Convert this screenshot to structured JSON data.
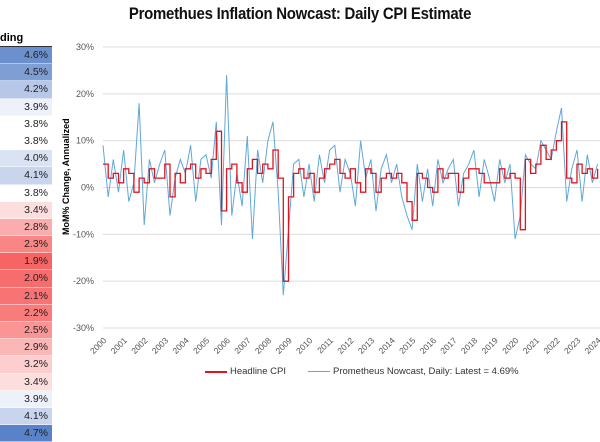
{
  "title": "Promethues Inflation Nowcast: Daily CPI Estimate",
  "table": {
    "header": "ding",
    "values": [
      "4.6%",
      "4.5%",
      "4.2%",
      "3.9%",
      "3.8%",
      "3.8%",
      "4.0%",
      "4.1%",
      "3.8%",
      "3.4%",
      "2.8%",
      "2.3%",
      "1.9%",
      "2.0%",
      "2.1%",
      "2.2%",
      "2.5%",
      "2.9%",
      "3.2%",
      "3.4%",
      "3.9%",
      "4.1%",
      "4.7%"
    ]
  },
  "chart_data": {
    "type": "line",
    "title": "Promethues Inflation Nowcast: Daily CPI Estimate",
    "xlabel": "",
    "ylabel": "MoM% Change, Annualized",
    "ylim": [
      -30,
      30
    ],
    "yticks": [
      "30%",
      "20%",
      "10%",
      "0%",
      "-10%",
      "-20%",
      "-30%"
    ],
    "yticks_values": [
      30,
      20,
      10,
      0,
      -10,
      -20,
      -30
    ],
    "xlim": [
      2000,
      2024.7
    ],
    "xticks": [
      "2000",
      "2001",
      "2002",
      "2003",
      "2004",
      "2005",
      "2006",
      "2007",
      "2008",
      "2009",
      "2010",
      "2011",
      "2012",
      "2013",
      "2014",
      "2015",
      "2016",
      "2017",
      "2018",
      "2019",
      "2020",
      "2021",
      "2022",
      "2023",
      "2024"
    ],
    "legend_position": "bottom",
    "grid": true,
    "x_start": 2000,
    "x_step": 0.25,
    "series": [
      {
        "name": "Headline CPI",
        "color": "#e0141e",
        "values": [
          5,
          2,
          3,
          1,
          4,
          3,
          -1,
          2,
          1,
          4,
          2,
          2,
          5,
          -2,
          3,
          1,
          4,
          5,
          2,
          4,
          3,
          6,
          12,
          -5,
          4,
          5,
          1,
          -1,
          4,
          6,
          3,
          5,
          4,
          8,
          2,
          -20,
          -2,
          3,
          4,
          2,
          3,
          -1,
          2,
          4,
          5,
          6,
          3,
          2,
          4,
          1,
          -1,
          4,
          3,
          -1,
          2,
          3,
          2,
          3,
          1,
          -3,
          -7,
          3,
          2,
          0,
          -1,
          4,
          2,
          3,
          3,
          -1,
          2,
          4,
          4,
          3,
          1,
          1,
          1,
          4,
          2,
          3,
          2,
          -9,
          6,
          3,
          5,
          9,
          6,
          8,
          10,
          14,
          2,
          1,
          5,
          3,
          4,
          2,
          4
        ]
      },
      {
        "name": "Prometheus Nowcast, Daily: Latest = 4.69%",
        "color": "#5fa8d8",
        "values": [
          9,
          -2,
          6,
          -1,
          8,
          -3,
          1,
          18,
          -8,
          6,
          1,
          5,
          8,
          -6,
          2,
          6,
          3,
          9,
          -3,
          6,
          7,
          2,
          14,
          -8,
          24,
          -6,
          3,
          -4,
          11,
          -11,
          8,
          1,
          10,
          14,
          -1,
          -23,
          -9,
          5,
          6,
          -2,
          5,
          -3,
          7,
          1,
          8,
          9,
          -1,
          6,
          3,
          -4,
          10,
          2,
          6,
          -5,
          4,
          7,
          1,
          5,
          -2,
          -6,
          -9,
          5,
          -3,
          4,
          -4,
          6,
          1,
          4,
          6,
          -4,
          3,
          5,
          8,
          -2,
          6,
          2,
          -3,
          6,
          1,
          5,
          -11,
          -6,
          7,
          5,
          4,
          10,
          8,
          6,
          12,
          17,
          -3,
          4,
          8,
          -3,
          7,
          1,
          5
        ]
      }
    ]
  }
}
